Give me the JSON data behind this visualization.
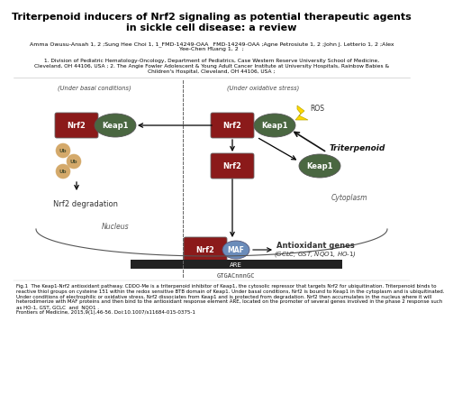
{
  "title": "Triterpenoid inducers of Nrf2 signaling as potential therapeutic agents\nin sickle cell disease: a review",
  "authors": "Amma Owusu-Ansah 1, 2 ;Sung Hee Choi 1, 1_FMD-14249-OAA _FMD-14249-OAA ;Agne Petrosiute 1, 2 ;John J. Letterio 1, 2 ;Alex\nYee-Chen Huang 1, 2  ;",
  "affiliations": "1. Division of Pediatric Hematology-Oncology, Department of Pediatrics, Case Western Reserve University School of Medicine,\nCleveland, OH 44106, USA ; 2. The Angie Fowler Adolescent & Young Adult Cancer Institute at University Hospitals, Rainbow Babies &\nChildren's Hospital, Cleveland, OH 44106, USA ;",
  "caption_bold": "Fig.1  ",
  "caption_text": "The Keap1-Nrf2 antioxidant pathway. CDDO-Me is a triterpenoid inhibitor of Keap1, the cytosolic repressor that targets Nrf2 for ubiquitination. Triterpenoid binds to\nreactive thiol groups on cysteine 151 within the redox sensitive BTB domain of Keap1. Under basal conditions, Nrf2 is bound to Keap1 in the cytoplasm and is ubiquitinated.\nUnder conditions of electrophilic or oxidative stress, Nrf2 dissociates from Keap1 and is protected from degradation. Nrf2 then accumulates in the nucleus where it will\nheterodimerize with MAF proteins and then bind to the antioxidant response element ARE, located on the promoter of several genes involved in the phase 2 response such\nas HO-1, GST, GCLC  and  NQO1 .\nFrontiers of Medicine, 2015,9(1),46-56. Doi:10.1007/s11684-015-0375-1",
  "bg_color": "#ffffff",
  "title_color": "#000000",
  "nrf2_color": "#8B1A1A",
  "keap1_color": "#4a6741",
  "maf_color": "#6b8cba",
  "ub_color": "#d4a96a",
  "arrow_color": "#000000",
  "dashed_line_color": "#666666"
}
